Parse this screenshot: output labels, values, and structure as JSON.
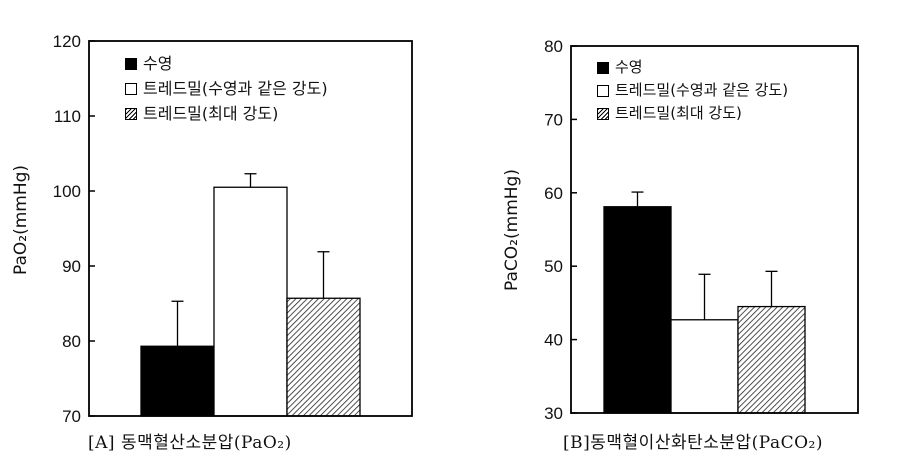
{
  "chart_data": [
    {
      "type": "bar",
      "caption": "[A] 동맥혈산소분압(PaO₂)",
      "ylabel": "PaO₂(mmHg)",
      "ylim": [
        70,
        120
      ],
      "yticks": [
        "70",
        "80",
        "90",
        "100",
        "110",
        "120"
      ],
      "legend_position": "top-left",
      "series": [
        {
          "name": "수영",
          "value": 79.3,
          "error": 6.0,
          "fill": "solid",
          "color": "#000000"
        },
        {
          "name": "트레드밀(수영과 같은 강도)",
          "value": 100.5,
          "error": 1.8,
          "fill": "open",
          "color": "#ffffff"
        },
        {
          "name": "트레드밀(최대 강도)",
          "value": 85.7,
          "error": 6.2,
          "fill": "hatched",
          "color": "#8a8a8a"
        }
      ]
    },
    {
      "type": "bar",
      "caption": "[B]동맥혈이산화탄소분압(PaCO₂)",
      "ylabel": "PaCO₂(mmHg)",
      "ylim": [
        30,
        80
      ],
      "yticks": [
        "30",
        "40",
        "50",
        "60",
        "70",
        "80"
      ],
      "legend_position": "top-left",
      "series": [
        {
          "name": "수영",
          "value": 58.1,
          "error": 2.0,
          "fill": "solid",
          "color": "#000000"
        },
        {
          "name": "트레드밀(수영과 같은 강도)",
          "value": 42.7,
          "error": 6.2,
          "fill": "open",
          "color": "#ffffff"
        },
        {
          "name": "트레드밀(최대 강도)",
          "value": 44.5,
          "error": 4.8,
          "fill": "hatched",
          "color": "#8a8a8a"
        }
      ]
    }
  ]
}
